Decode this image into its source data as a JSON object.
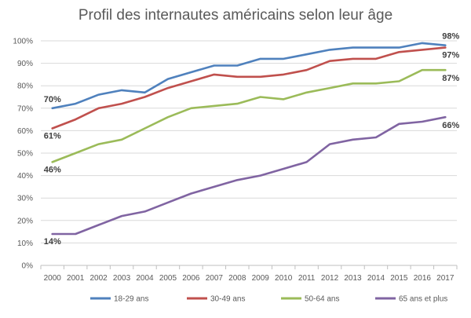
{
  "chart_data": {
    "type": "line",
    "title": "Profil des internautes  américains selon leur âge",
    "xlabel": "",
    "ylabel": "",
    "x": [
      "2000",
      "2001",
      "2002",
      "2003",
      "2004",
      "2005",
      "2006",
      "2007",
      "2008",
      "2009",
      "2010",
      "2011",
      "2012",
      "2013",
      "2014",
      "2015",
      "2016",
      "2017"
    ],
    "ylim": [
      0,
      100
    ],
    "yticks": [
      "0%",
      "10%",
      "20%",
      "30%",
      "40%",
      "50%",
      "60%",
      "70%",
      "80%",
      "90%",
      "100%"
    ],
    "grid": true,
    "legend_position": "bottom",
    "series": [
      {
        "name": "18-29 ans",
        "color": "#4F81BD",
        "values": [
          70,
          72,
          76,
          78,
          77,
          83,
          86,
          89,
          89,
          92,
          92,
          94,
          96,
          97,
          97,
          97,
          99,
          98
        ],
        "labels": {
          "start": "70%",
          "end": "98%"
        }
      },
      {
        "name": "30-49 ans",
        "color": "#C0504D",
        "values": [
          61,
          65,
          70,
          72,
          75,
          79,
          82,
          85,
          84,
          84,
          85,
          87,
          91,
          92,
          92,
          95,
          96,
          97
        ],
        "labels": {
          "start": "61%",
          "end": "97%"
        }
      },
      {
        "name": "50-64 ans",
        "color": "#9BBB59",
        "values": [
          46,
          50,
          54,
          56,
          61,
          66,
          70,
          71,
          72,
          75,
          74,
          77,
          79,
          81,
          81,
          82,
          87,
          87
        ],
        "labels": {
          "start": "46%",
          "end": "87%"
        }
      },
      {
        "name": "65 ans et plus",
        "color": "#8064A2",
        "values": [
          14,
          14,
          18,
          22,
          24,
          28,
          32,
          35,
          38,
          40,
          43,
          46,
          54,
          56,
          57,
          63,
          64,
          66
        ],
        "labels": {
          "start": "14%",
          "end": "66%"
        }
      }
    ]
  }
}
